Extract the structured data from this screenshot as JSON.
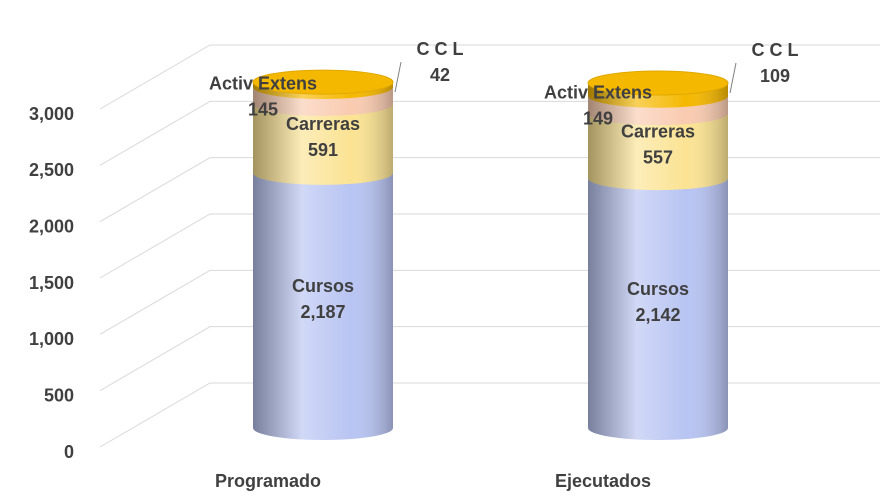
{
  "chart_data": {
    "type": "stacked-cylinder",
    "categories": [
      "Programado",
      "Ejecutados"
    ],
    "series": [
      {
        "name": "Cursos",
        "color": "#b8c4f2",
        "values": [
          2187,
          2142
        ],
        "value_labels": [
          "2,187",
          "2,142"
        ]
      },
      {
        "name": "Carreras",
        "color": "#fbe393",
        "values": [
          591,
          557
        ]
      },
      {
        "name": "Activ Extens",
        "color": "#f9cbb0",
        "values": [
          145,
          149
        ]
      },
      {
        "name": "C C L",
        "color": "#f5b800",
        "values": [
          42,
          109
        ]
      }
    ],
    "ylim": [
      0,
      3000
    ],
    "yticks": [
      0,
      500,
      {
        "value": 1000,
        "label": "1,000"
      },
      {
        "value": 1500,
        "label": "1,500"
      },
      {
        "value": 2000,
        "label": "2,000"
      },
      {
        "value": 2500,
        "label": "2,500"
      },
      {
        "value": 3000,
        "label": "3,000"
      }
    ],
    "grid": true
  }
}
